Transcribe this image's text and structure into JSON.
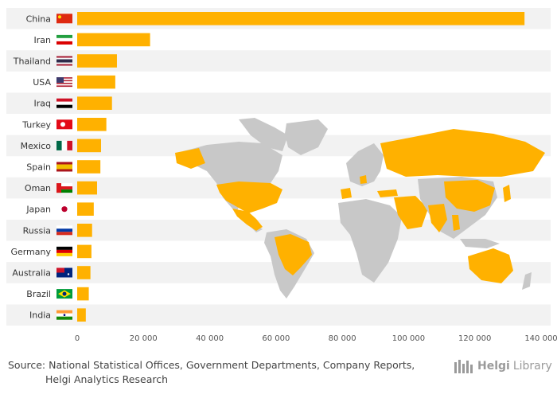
{
  "chart_data": {
    "type": "bar",
    "orientation": "horizontal",
    "categories": [
      "China",
      "Iran",
      "Thailand",
      "USA",
      "Iraq",
      "Turkey",
      "Mexico",
      "Spain",
      "Oman",
      "Japan",
      "Russia",
      "Germany",
      "Australia",
      "Brazil",
      "India"
    ],
    "values": [
      135000,
      22000,
      12000,
      11500,
      10500,
      8800,
      7200,
      7000,
      6000,
      5000,
      4500,
      4300,
      4000,
      3500,
      2600
    ],
    "xticks": [
      0,
      20000,
      40000,
      60000,
      80000,
      100000,
      120000,
      140000
    ],
    "xtick_labels": [
      "0",
      "20 000",
      "40 000",
      "60 000",
      "80 000",
      "100 000",
      "120 000",
      "140 000"
    ],
    "xlim": [
      0,
      140000
    ],
    "bar_color": "#ffb100",
    "band_color": "#f2f2f2",
    "map_land_color": "#c8c8c8",
    "map_highlight_color": "#ffb100"
  },
  "flags": [
    "cn-flag-icon",
    "ir-flag-icon",
    "th-flag-icon",
    "us-flag-icon",
    "iq-flag-icon",
    "tr-flag-icon",
    "mx-flag-icon",
    "es-flag-icon",
    "om-flag-icon",
    "jp-flag-icon",
    "ru-flag-icon",
    "de-flag-icon",
    "au-flag-icon",
    "br-flag-icon",
    "in-flag-icon"
  ],
  "footer": {
    "source_line1": "Source: National Statistical Offices, Government Departments, Company Reports,",
    "source_line2": "Helgi Analytics Research",
    "brand_part1": "Helgi",
    "brand_part2": "Library"
  }
}
